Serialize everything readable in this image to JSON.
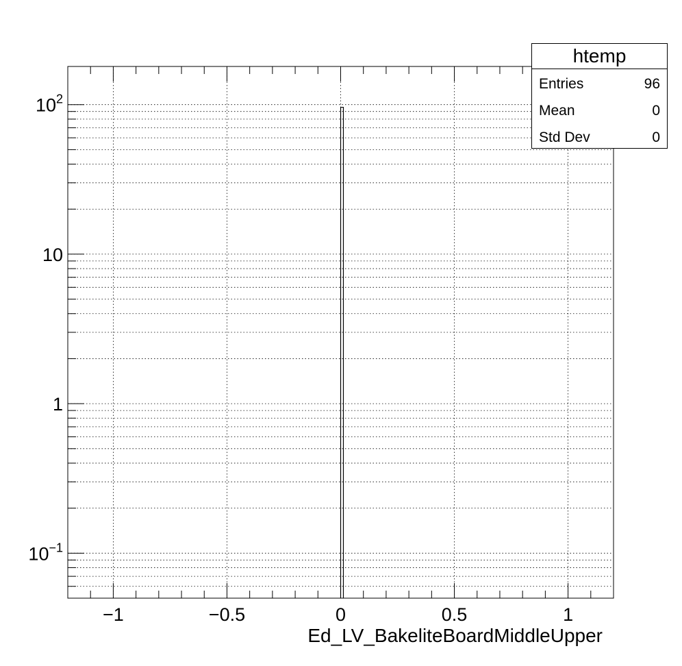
{
  "chart_data": {
    "type": "bar",
    "title": "",
    "xlabel": "Ed_LV_BakeliteBoardMiddleUpper",
    "ylabel": "",
    "xlim": [
      -1.2,
      1.2
    ],
    "ylim": [
      0.05,
      180
    ],
    "yscale": "log",
    "grid": true,
    "x_ticks": [
      {
        "value": -1,
        "label": "−1"
      },
      {
        "value": -0.5,
        "label": "−0.5"
      },
      {
        "value": 0,
        "label": "0"
      },
      {
        "value": 0.5,
        "label": "0.5"
      },
      {
        "value": 1,
        "label": "1"
      }
    ],
    "y_ticks": [
      {
        "value": 0.1,
        "base": "10",
        "exp": "−1"
      },
      {
        "value": 1,
        "base": "1",
        "exp": ""
      },
      {
        "value": 10,
        "base": "10",
        "exp": ""
      },
      {
        "value": 100,
        "base": "10",
        "exp": "2"
      }
    ],
    "bins": [
      {
        "x_low": 0,
        "x_high": 0.012,
        "value": 96
      }
    ]
  },
  "stats": {
    "title": "htemp",
    "rows": [
      {
        "label": "Entries",
        "value": "96"
      },
      {
        "label": "Mean",
        "value": "0"
      },
      {
        "label": "Std Dev",
        "value": "0"
      }
    ]
  }
}
